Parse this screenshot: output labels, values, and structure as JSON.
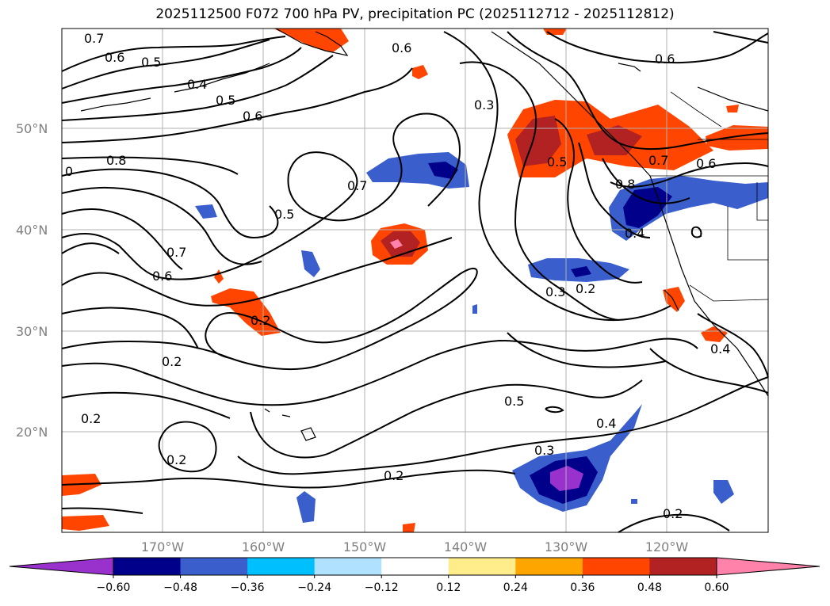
{
  "title": "2025112500 F072 700 hPa PV, precipitation PC (2025112712 - 2025112812)",
  "lat_ticks": [
    "50°N",
    "40°N",
    "30°N",
    "20°N"
  ],
  "lon_ticks": [
    "170°W",
    "160°W",
    "150°W",
    "140°W",
    "130°W",
    "120°W"
  ],
  "colorbar": {
    "ticks": [
      "−0.60",
      "−0.48",
      "−0.36",
      "−0.24",
      "−0.12",
      "0.12",
      "0.24",
      "0.36",
      "0.48",
      "0.60"
    ],
    "colors": [
      "#9932cc",
      "#00008b",
      "#3a5fcd",
      "#00bfff",
      "#b0e2ff",
      "#ffffff",
      "#ffec8b",
      "#ffa500",
      "#ff4500",
      "#b22222",
      "#ff82ab"
    ]
  },
  "contour_labels": [
    "0.7",
    "0.6",
    "0.5",
    "0.4",
    "0.5",
    "0.6",
    "0.8",
    "0",
    "0.6",
    "0.3",
    "0.5",
    "0.7",
    "0.5",
    "0.7",
    "0.6",
    "0.7",
    "0.6",
    "0.8",
    "0.4",
    "0.3",
    "0.2",
    "0.2",
    "0.2",
    "0.2",
    "0.2",
    "0.5",
    "0.4",
    "0.3",
    "0.2",
    "0.2",
    "0.4",
    "0.6"
  ]
}
